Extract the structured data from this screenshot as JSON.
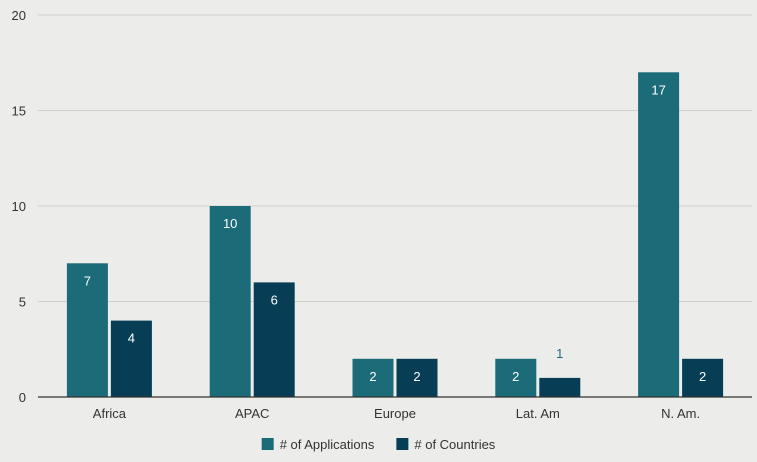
{
  "chart_data": {
    "type": "bar",
    "title": "",
    "xlabel": "",
    "ylabel": "",
    "categories": [
      "Africa",
      "APAC",
      "Europe",
      "Lat. Am",
      "N. Am."
    ],
    "series": [
      {
        "name": "# of Applications",
        "values": [
          7,
          10,
          2,
          2,
          17
        ],
        "color": "#1c6b78"
      },
      {
        "name": "# of Countries",
        "values": [
          4,
          6,
          2,
          1,
          2
        ],
        "color": "#073e56"
      }
    ],
    "ylim": [
      0,
      20
    ],
    "yticks": [
      "0",
      "5",
      "10",
      "15",
      "20"
    ],
    "grid": true,
    "legend": "bottom-center",
    "colors": {
      "background": "#ececea",
      "gridline": "#cfcfcb",
      "axis": "#333333",
      "label_inside": "#ffffff",
      "label_outside": "#1c6b78",
      "text": "#333333"
    }
  }
}
